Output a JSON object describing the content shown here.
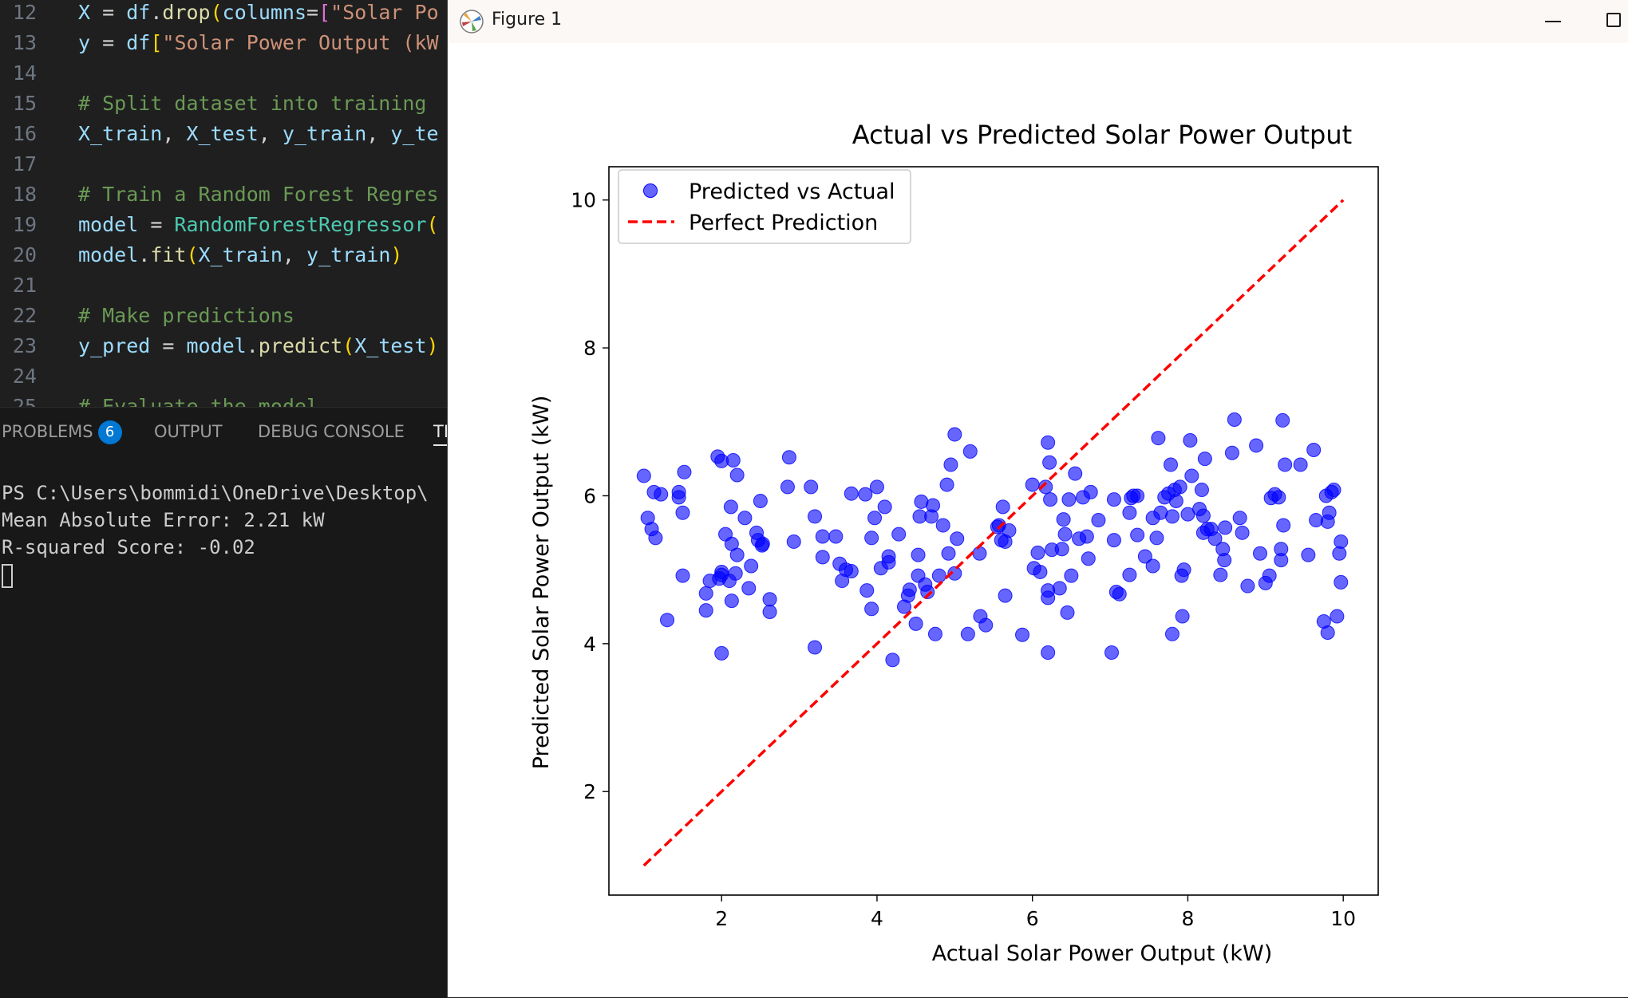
{
  "editor": {
    "lines": [
      {
        "n": "12",
        "tokens": [
          [
            "t-default",
            "X"
          ],
          [
            "t-op",
            " = "
          ],
          [
            "t-default",
            "df"
          ],
          [
            "t-op",
            "."
          ],
          [
            "t-fn",
            "drop"
          ],
          [
            "t-brk",
            "("
          ],
          [
            "t-default",
            "columns"
          ],
          [
            "t-op",
            "="
          ],
          [
            "t-brk2",
            "["
          ],
          [
            "t-str",
            "\"Solar Po"
          ]
        ]
      },
      {
        "n": "13",
        "tokens": [
          [
            "t-default",
            "y"
          ],
          [
            "t-op",
            " = "
          ],
          [
            "t-default",
            "df"
          ],
          [
            "t-brk",
            "["
          ],
          [
            "t-str",
            "\"Solar Power Output (kW"
          ]
        ]
      },
      {
        "n": "14",
        "tokens": []
      },
      {
        "n": "15",
        "tokens": [
          [
            "t-cmt",
            "# Split dataset into training "
          ]
        ]
      },
      {
        "n": "16",
        "tokens": [
          [
            "t-default",
            "X_train"
          ],
          [
            "t-op",
            ", "
          ],
          [
            "t-default",
            "X_test"
          ],
          [
            "t-op",
            ", "
          ],
          [
            "t-default",
            "y_train"
          ],
          [
            "t-op",
            ", "
          ],
          [
            "t-default",
            "y_te"
          ]
        ]
      },
      {
        "n": "17",
        "tokens": []
      },
      {
        "n": "18",
        "tokens": [
          [
            "t-cmt",
            "# Train a Random Forest Regres"
          ]
        ]
      },
      {
        "n": "19",
        "tokens": [
          [
            "t-default",
            "model"
          ],
          [
            "t-op",
            " = "
          ],
          [
            "t-cls",
            "RandomForestRegressor"
          ],
          [
            "t-brk",
            "("
          ]
        ]
      },
      {
        "n": "20",
        "tokens": [
          [
            "t-default",
            "model"
          ],
          [
            "t-op",
            "."
          ],
          [
            "t-fn",
            "fit"
          ],
          [
            "t-brk",
            "("
          ],
          [
            "t-default",
            "X_train"
          ],
          [
            "t-op",
            ", "
          ],
          [
            "t-default",
            "y_train"
          ],
          [
            "t-brk",
            ")"
          ]
        ]
      },
      {
        "n": "21",
        "tokens": []
      },
      {
        "n": "22",
        "tokens": [
          [
            "t-cmt",
            "# Make predictions"
          ]
        ]
      },
      {
        "n": "23",
        "tokens": [
          [
            "t-default",
            "y_pred"
          ],
          [
            "t-op",
            " = "
          ],
          [
            "t-default",
            "model"
          ],
          [
            "t-op",
            "."
          ],
          [
            "t-fn",
            "predict"
          ],
          [
            "t-brk",
            "("
          ],
          [
            "t-default",
            "X_test"
          ],
          [
            "t-brk",
            ")"
          ]
        ]
      },
      {
        "n": "24",
        "tokens": []
      },
      {
        "n": "25",
        "tokens": [
          [
            "t-cmt",
            "# Evaluate the model"
          ]
        ]
      }
    ]
  },
  "panel": {
    "tabs": {
      "problems": "PROBLEMS",
      "problems_count": "6",
      "output": "OUTPUT",
      "debug": "DEBUG CONSOLE",
      "terminal": "TE"
    },
    "terminal_lines": [
      "PS C:\\Users\\bommidi\\OneDrive\\Desktop\\",
      "Mean Absolute Error: 2.21 kW",
      "R-squared Score: -0.02"
    ]
  },
  "figure_window": {
    "title": "Figure 1"
  },
  "chart_data": {
    "type": "scatter",
    "title": "Actual vs Predicted Solar Power Output",
    "xlabel": "Actual Solar Power Output (kW)",
    "ylabel": "Predicted Solar Power Output (kW)",
    "xlim": [
      0.55,
      10.45
    ],
    "ylim": [
      0.6,
      10.45
    ],
    "xticks": [
      2,
      4,
      6,
      8,
      10
    ],
    "yticks": [
      2,
      4,
      6,
      8,
      10
    ],
    "legend_position": "upper-left",
    "colors": {
      "points": "#0000ff",
      "line": "#ff0000"
    },
    "series": [
      {
        "name": "Predicted vs Actual",
        "kind": "scatter",
        "points": [
          [
            1.0,
            6.27
          ],
          [
            1.05,
            5.7
          ],
          [
            1.1,
            5.55
          ],
          [
            1.13,
            6.05
          ],
          [
            1.15,
            5.43
          ],
          [
            1.22,
            6.02
          ],
          [
            1.3,
            4.32
          ],
          [
            1.45,
            5.98
          ],
          [
            1.45,
            6.05
          ],
          [
            1.5,
            5.77
          ],
          [
            1.5,
            4.92
          ],
          [
            1.52,
            6.32
          ],
          [
            1.8,
            4.68
          ],
          [
            1.8,
            4.45
          ],
          [
            1.85,
            4.85
          ],
          [
            1.95,
            6.53
          ],
          [
            1.97,
            4.88
          ],
          [
            2.0,
            6.47
          ],
          [
            2.0,
            4.97
          ],
          [
            2.0,
            3.87
          ],
          [
            2.0,
            4.93
          ],
          [
            2.05,
            5.48
          ],
          [
            2.1,
            4.85
          ],
          [
            2.12,
            5.85
          ],
          [
            2.13,
            5.35
          ],
          [
            2.13,
            4.58
          ],
          [
            2.15,
            6.48
          ],
          [
            2.18,
            4.95
          ],
          [
            2.2,
            5.2
          ],
          [
            2.2,
            6.28
          ],
          [
            2.3,
            5.7
          ],
          [
            2.35,
            4.75
          ],
          [
            2.38,
            5.05
          ],
          [
            2.45,
            5.5
          ],
          [
            2.47,
            5.4
          ],
          [
            2.5,
            5.93
          ],
          [
            2.52,
            5.33
          ],
          [
            2.53,
            5.35
          ],
          [
            2.62,
            4.6
          ],
          [
            2.62,
            4.43
          ],
          [
            2.85,
            6.12
          ],
          [
            2.87,
            6.52
          ],
          [
            2.93,
            5.38
          ],
          [
            3.15,
            6.12
          ],
          [
            3.2,
            5.72
          ],
          [
            3.2,
            3.95
          ],
          [
            3.3,
            5.45
          ],
          [
            3.3,
            5.17
          ],
          [
            3.47,
            5.45
          ],
          [
            3.52,
            5.08
          ],
          [
            3.55,
            4.85
          ],
          [
            3.6,
            5.0
          ],
          [
            3.67,
            6.03
          ],
          [
            3.67,
            4.98
          ],
          [
            3.85,
            6.02
          ],
          [
            3.87,
            4.72
          ],
          [
            3.93,
            4.47
          ],
          [
            3.93,
            5.43
          ],
          [
            3.97,
            5.7
          ],
          [
            4.0,
            6.12
          ],
          [
            4.05,
            5.02
          ],
          [
            4.1,
            5.85
          ],
          [
            4.15,
            5.18
          ],
          [
            4.15,
            5.1
          ],
          [
            4.2,
            3.78
          ],
          [
            4.28,
            5.48
          ],
          [
            4.35,
            4.5
          ],
          [
            4.4,
            4.65
          ],
          [
            4.42,
            4.73
          ],
          [
            4.5,
            4.27
          ],
          [
            4.53,
            5.2
          ],
          [
            4.53,
            4.92
          ],
          [
            4.55,
            5.72
          ],
          [
            4.57,
            5.92
          ],
          [
            4.62,
            4.8
          ],
          [
            4.65,
            4.7
          ],
          [
            4.7,
            5.72
          ],
          [
            4.72,
            5.87
          ],
          [
            4.75,
            4.13
          ],
          [
            4.8,
            4.92
          ],
          [
            4.85,
            5.6
          ],
          [
            4.9,
            6.15
          ],
          [
            4.92,
            5.22
          ],
          [
            4.95,
            6.42
          ],
          [
            5.0,
            4.95
          ],
          [
            5.0,
            6.83
          ],
          [
            5.03,
            5.42
          ],
          [
            5.17,
            4.13
          ],
          [
            5.2,
            6.6
          ],
          [
            5.32,
            5.22
          ],
          [
            5.33,
            4.37
          ],
          [
            5.4,
            4.25
          ],
          [
            5.55,
            5.58
          ],
          [
            5.57,
            5.6
          ],
          [
            5.6,
            5.4
          ],
          [
            5.62,
            5.85
          ],
          [
            5.65,
            4.65
          ],
          [
            5.65,
            5.38
          ],
          [
            5.7,
            5.53
          ],
          [
            5.87,
            4.12
          ],
          [
            6.0,
            6.15
          ],
          [
            6.02,
            5.02
          ],
          [
            6.07,
            5.23
          ],
          [
            6.1,
            4.97
          ],
          [
            6.17,
            6.12
          ],
          [
            6.2,
            6.72
          ],
          [
            6.2,
            4.72
          ],
          [
            6.2,
            4.62
          ],
          [
            6.2,
            3.88
          ],
          [
            6.22,
            6.45
          ],
          [
            6.23,
            5.95
          ],
          [
            6.25,
            5.27
          ],
          [
            6.35,
            4.75
          ],
          [
            6.38,
            5.28
          ],
          [
            6.4,
            5.68
          ],
          [
            6.42,
            5.48
          ],
          [
            6.45,
            4.42
          ],
          [
            6.47,
            5.95
          ],
          [
            6.5,
            4.92
          ],
          [
            6.55,
            6.3
          ],
          [
            6.6,
            5.42
          ],
          [
            6.65,
            5.98
          ],
          [
            6.7,
            5.45
          ],
          [
            6.72,
            5.15
          ],
          [
            6.75,
            6.05
          ],
          [
            6.85,
            5.67
          ],
          [
            7.02,
            3.88
          ],
          [
            7.05,
            5.95
          ],
          [
            7.05,
            5.4
          ],
          [
            7.08,
            4.7
          ],
          [
            7.12,
            4.67
          ],
          [
            7.25,
            4.93
          ],
          [
            7.25,
            5.77
          ],
          [
            7.27,
            5.97
          ],
          [
            7.3,
            6.0
          ],
          [
            7.35,
            6.0
          ],
          [
            7.35,
            5.47
          ],
          [
            7.45,
            5.18
          ],
          [
            7.55,
            5.7
          ],
          [
            7.55,
            5.05
          ],
          [
            7.6,
            5.43
          ],
          [
            7.62,
            6.78
          ],
          [
            7.65,
            5.77
          ],
          [
            7.7,
            5.98
          ],
          [
            7.75,
            6.03
          ],
          [
            7.78,
            6.42
          ],
          [
            7.8,
            4.13
          ],
          [
            7.8,
            5.72
          ],
          [
            7.83,
            6.08
          ],
          [
            7.85,
            5.93
          ],
          [
            7.9,
            6.12
          ],
          [
            7.92,
            4.92
          ],
          [
            7.93,
            4.37
          ],
          [
            7.95,
            5.0
          ],
          [
            8.0,
            5.75
          ],
          [
            8.03,
            6.75
          ],
          [
            8.05,
            6.27
          ],
          [
            8.15,
            5.82
          ],
          [
            8.18,
            6.08
          ],
          [
            8.2,
            5.73
          ],
          [
            8.2,
            5.5
          ],
          [
            8.22,
            6.5
          ],
          [
            8.25,
            5.55
          ],
          [
            8.3,
            5.55
          ],
          [
            8.35,
            5.42
          ],
          [
            8.42,
            4.93
          ],
          [
            8.45,
            5.28
          ],
          [
            8.47,
            5.13
          ],
          [
            8.48,
            5.57
          ],
          [
            8.57,
            6.58
          ],
          [
            8.6,
            7.03
          ],
          [
            8.67,
            5.7
          ],
          [
            8.7,
            5.5
          ],
          [
            8.77,
            4.78
          ],
          [
            8.88,
            6.68
          ],
          [
            8.93,
            5.22
          ],
          [
            9.0,
            4.82
          ],
          [
            9.05,
            4.92
          ],
          [
            9.07,
            5.97
          ],
          [
            9.12,
            6.02
          ],
          [
            9.17,
            5.98
          ],
          [
            9.2,
            5.13
          ],
          [
            9.2,
            5.28
          ],
          [
            9.22,
            7.02
          ],
          [
            9.23,
            5.6
          ],
          [
            9.25,
            6.42
          ],
          [
            9.45,
            6.42
          ],
          [
            9.55,
            5.2
          ],
          [
            9.62,
            6.62
          ],
          [
            9.65,
            5.67
          ],
          [
            9.75,
            4.3
          ],
          [
            9.78,
            6.0
          ],
          [
            9.8,
            4.15
          ],
          [
            9.8,
            5.65
          ],
          [
            9.82,
            5.77
          ],
          [
            9.85,
            6.05
          ],
          [
            9.88,
            6.08
          ],
          [
            9.92,
            4.37
          ],
          [
            9.95,
            5.22
          ],
          [
            9.97,
            5.38
          ],
          [
            9.97,
            4.83
          ]
        ]
      },
      {
        "name": "Perfect Prediction",
        "kind": "line",
        "x": [
          1,
          10
        ],
        "y": [
          1,
          10
        ]
      }
    ]
  }
}
